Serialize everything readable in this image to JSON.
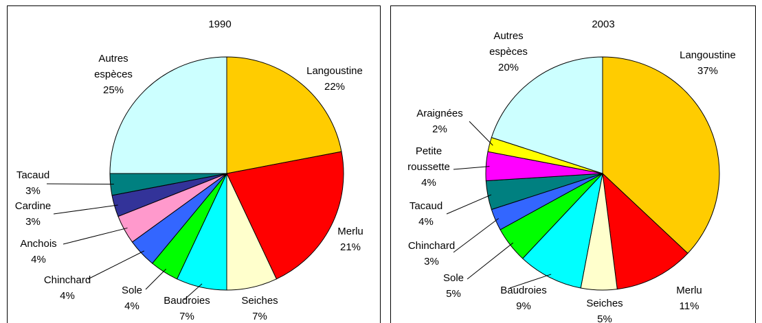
{
  "chart_data": [
    {
      "type": "pie",
      "title": "1990",
      "categories": [
        "Langoustine",
        "Merlu",
        "Seiches",
        "Baudroies",
        "Sole",
        "Chinchard",
        "Anchois",
        "Cardine",
        "Tacaud",
        "Autres espèces"
      ],
      "values": [
        22,
        21,
        7,
        7,
        4,
        4,
        4,
        3,
        3,
        25
      ],
      "value_labels": [
        "22%",
        "21%",
        "7%",
        "7%",
        "4%",
        "4%",
        "4%",
        "3%",
        "3%",
        "25%"
      ],
      "colors": [
        "#ffcc00",
        "#ff0000",
        "#ffffcc",
        "#00ffff",
        "#00ff00",
        "#3366ff",
        "#ff99cc",
        "#333399",
        "#008080",
        "#ccffff"
      ]
    },
    {
      "type": "pie",
      "title": "2003",
      "categories": [
        "Langoustine",
        "Merlu",
        "Seiches",
        "Baudroies",
        "Sole",
        "Chinchard",
        "Tacaud",
        "Petite roussette",
        "Araignées",
        "Autres espèces"
      ],
      "values": [
        37,
        11,
        5,
        9,
        5,
        3,
        4,
        4,
        2,
        20
      ],
      "value_labels": [
        "37%",
        "11%",
        "5%",
        "9%",
        "5%",
        "3%",
        "4%",
        "4%",
        "2%",
        "20%"
      ],
      "colors": [
        "#ffcc00",
        "#ff0000",
        "#ffffcc",
        "#00ffff",
        "#00ff00",
        "#3366ff",
        "#008080",
        "#ff00ff",
        "#ffff00",
        "#ccffff"
      ]
    }
  ]
}
